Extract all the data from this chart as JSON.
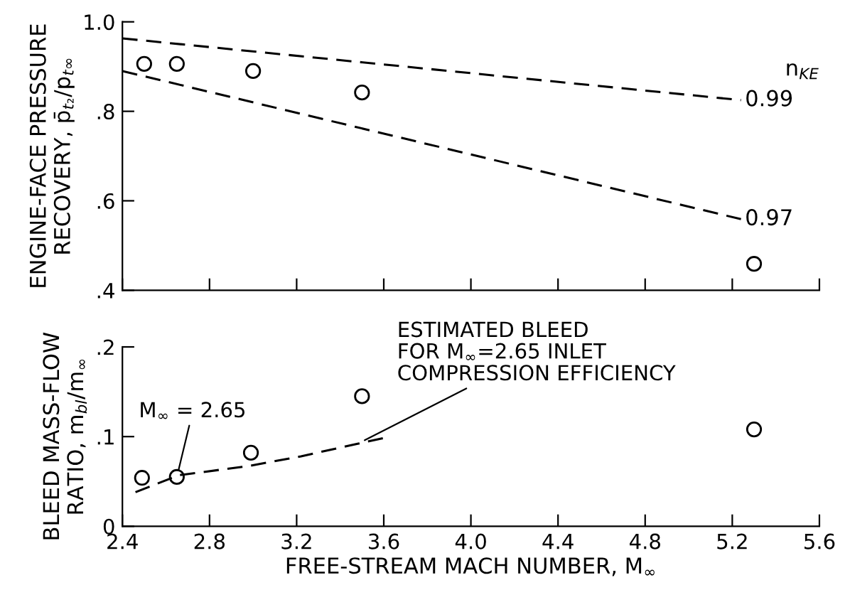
{
  "chart_data": [
    {
      "type": "scatter",
      "ylabel": "ENGINE-FACE PRESSURE\nRECOVERY, p̄$_{t₂}$/p$_{t∞}$",
      "series": [
        {
          "color": "#000000",
          "x": [
            2.5,
            2.65,
            3.0,
            3.5,
            5.3
          ],
          "values": [
            0.906,
            0.906,
            0.89,
            0.842,
            0.459
          ]
        },
        {
          "type": "line",
          "name": "0.99",
          "color": "#000000",
          "x": [
            2.4,
            5.24
          ],
          "values": [
            0.963,
            0.825
          ],
          "line_style": "dashed",
          "marker": "none"
        },
        {
          "type": "line",
          "name": "0.97",
          "color": "#000000",
          "x": [
            2.4,
            5.24
          ],
          "values": [
            0.89,
            0.559
          ],
          "line_style": "dashed",
          "marker": "none"
        }
      ],
      "annotations": [
        "n$_{KE}$"
      ],
      "marker": "circle",
      "xlim": [
        2.4,
        5.6
      ],
      "xticks": [
        2.4,
        2.8,
        3.2,
        3.6,
        4,
        4.4,
        4.8,
        5.2,
        5.6
      ],
      "ylim": [
        0.4,
        1.0
      ],
      "yticks": [
        {
          "value": 0.4,
          "label": ".4"
        },
        {
          "value": 0.6,
          "label": ".6"
        },
        {
          "value": 0.8,
          "label": ".8"
        },
        {
          "value": 1.0,
          "label": "1.0"
        }
      ],
      "tick_labels": "y",
      "grid": false,
      "legend": false
    },
    {
      "type": "scatter",
      "xlabel": "FREE-STREAM MACH NUMBER, M$_{∞}$",
      "ylabel": "BLEED MASS-FLOW\nRATIO, m$_{bl}$/m$_{∞}$",
      "series": [
        {
          "color": "#000000",
          "x": [
            2.49,
            2.65,
            2.99,
            3.5,
            5.3
          ],
          "values": [
            0.054,
            0.055,
            0.082,
            0.145,
            0.108
          ]
        },
        {
          "type": "line",
          "color": "#000000",
          "x": [
            2.46,
            2.66,
            2.975,
            3.22,
            3.48,
            3.61
          ],
          "values": [
            0.038,
            0.057,
            0.067,
            0.078,
            0.092,
            0.099
          ],
          "line_style": "dashed",
          "marker": "none"
        }
      ],
      "annotations": [
        {
          "text": "M$_{∞}$ = 2.65",
          "x": 2.65,
          "y": 0.055
        },
        {
          "text": "ESTIMATED BLEED\nFOR M$_{∞}$=2.65 INLET\nCOMPRESSION EFFICIENCY",
          "x": 3.48,
          "y": 0.092
        }
      ],
      "marker": "circle",
      "xlim": [
        2.4,
        5.6
      ],
      "xticks": [
        2.4,
        2.8,
        3.2,
        3.6,
        {
          "value": 4.0,
          "label": "4.0"
        },
        4.4,
        4.8,
        5.2,
        5.6
      ],
      "ylim": [
        0,
        0.2
      ],
      "yticks": [
        0,
        {
          "value": 0.1,
          "label": ".1"
        },
        {
          "value": 0.2,
          "label": ".2"
        }
      ],
      "grid": false,
      "legend": false
    }
  ]
}
